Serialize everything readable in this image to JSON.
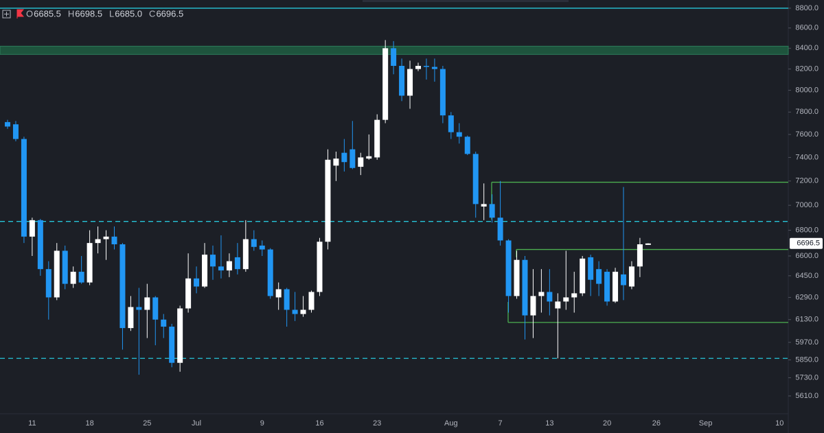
{
  "chart_data": {
    "type": "candlestick",
    "ohlc_letters": [
      "O",
      "H",
      "L",
      "C"
    ],
    "last_labels": {
      "open": "6685.5",
      "high": "6698.5",
      "low": "6685.0",
      "close": "6696.5"
    },
    "categories": [
      null,
      null,
      null,
      "11",
      null,
      null,
      null,
      null,
      null,
      null,
      "18",
      null,
      null,
      null,
      null,
      null,
      null,
      "25",
      null,
      null,
      null,
      null,
      null,
      "Jul",
      null,
      null,
      null,
      null,
      null,
      null,
      null,
      "9",
      null,
      null,
      null,
      null,
      null,
      null,
      "16",
      null,
      null,
      null,
      null,
      null,
      null,
      "23",
      null,
      null,
      null,
      null,
      null,
      null,
      null,
      null,
      "Aug",
      null,
      null,
      null,
      null,
      null,
      "7",
      null,
      null,
      null,
      null,
      null,
      "13",
      null,
      null,
      null,
      null,
      null,
      null,
      "20",
      null,
      null,
      null,
      null,
      null,
      "26",
      null,
      null,
      null,
      null,
      null,
      "Sep",
      null,
      null,
      null,
      null,
      null,
      null,
      null,
      null,
      "10"
    ],
    "open": [
      7710,
      7690,
      7560,
      6750,
      6880,
      6500,
      6290,
      6640,
      6390,
      6480,
      6400,
      6700,
      6730,
      6750,
      6690,
      6070,
      6220,
      6200,
      6290,
      6130,
      6080,
      5830,
      6210,
      6430,
      6370,
      6610,
      6520,
      6490,
      6590,
      6500,
      6730,
      6680,
      6650,
      6290,
      6350,
      6200,
      6170,
      6200,
      6330,
      6710,
      7330,
      7440,
      7470,
      7320,
      7390,
      7400,
      7730,
      8400,
      8230,
      7950,
      8200,
      8230,
      8220,
      8200,
      7770,
      7620,
      7580,
      7430,
      6990,
      7010,
      6900,
      6720,
      6300,
      6570,
      6160,
      6300,
      6330,
      6210,
      6260,
      6290,
      6320,
      6590,
      6500,
      6480,
      6260,
      6460,
      6370,
      6520,
      6685.5,
      null,
      null,
      null,
      null,
      null,
      null,
      null,
      null,
      null,
      null,
      null,
      null,
      null,
      null,
      null,
      null
    ],
    "high": [
      7730,
      7720,
      7580,
      6900,
      6890,
      6560,
      6700,
      6680,
      6520,
      6600,
      6800,
      6830,
      6800,
      6830,
      6700,
      6300,
      6360,
      6390,
      6300,
      6170,
      6100,
      6230,
      6620,
      6520,
      6700,
      6680,
      6760,
      6620,
      6700,
      6880,
      6800,
      6720,
      6660,
      6400,
      6360,
      6330,
      6300,
      6340,
      6740,
      7470,
      7450,
      7560,
      7720,
      7440,
      7600,
      7780,
      8480,
      8470,
      8300,
      8280,
      8260,
      8300,
      8300,
      8230,
      7800,
      7700,
      7590,
      7450,
      7180,
      7090,
      7200,
      6730,
      6640,
      6600,
      6500,
      6500,
      6500,
      6320,
      6640,
      6480,
      6600,
      6610,
      6560,
      6500,
      6510,
      7150,
      6560,
      6740,
      6698.5,
      null,
      null,
      null,
      null,
      null,
      null,
      null,
      null,
      null,
      null,
      null,
      null,
      null,
      null,
      null,
      null
    ],
    "low": [
      7650,
      7540,
      6700,
      6600,
      6450,
      6130,
      6270,
      6350,
      6360,
      6390,
      6380,
      6620,
      6570,
      6650,
      5920,
      6050,
      5750,
      6000,
      5950,
      6000,
      5800,
      5770,
      6180,
      6320,
      6360,
      6420,
      6430,
      6440,
      6460,
      6480,
      6640,
      6600,
      6280,
      6200,
      6080,
      6120,
      6150,
      6180,
      6300,
      6650,
      7200,
      7280,
      7300,
      7250,
      7380,
      7380,
      7700,
      8150,
      7900,
      7830,
      8180,
      8100,
      8080,
      7700,
      7560,
      7520,
      7420,
      6900,
      6880,
      6860,
      6680,
      6180,
      6280,
      5990,
      6000,
      6180,
      6160,
      5860,
      6200,
      6180,
      6300,
      6300,
      6300,
      6230,
      6250,
      6270,
      6350,
      6440,
      6685,
      null,
      null,
      null,
      null,
      null,
      null,
      null,
      null,
      null,
      null,
      null,
      null,
      null,
      null,
      null,
      null
    ],
    "close": [
      7670,
      7560,
      6750,
      6880,
      6500,
      6290,
      6640,
      6390,
      6480,
      6400,
      6700,
      6730,
      6750,
      6690,
      6070,
      6220,
      6200,
      6290,
      6130,
      6080,
      5830,
      6210,
      6430,
      6370,
      6610,
      6520,
      6490,
      6560,
      6500,
      6730,
      6670,
      6650,
      6300,
      6350,
      6200,
      6170,
      6200,
      6330,
      6710,
      7380,
      7390,
      7360,
      7310,
      7400,
      7410,
      7730,
      8400,
      8230,
      7950,
      8200,
      8230,
      8220,
      8200,
      7770,
      7620,
      7580,
      7430,
      7010,
      7010,
      6900,
      6720,
      6300,
      6570,
      6160,
      6300,
      6330,
      6260,
      6260,
      6290,
      6320,
      6580,
      6420,
      6390,
      6260,
      6480,
      6380,
      6520,
      6690,
      6696.5,
      null,
      null,
      null,
      null,
      null,
      null,
      null,
      null,
      null,
      null,
      null,
      null,
      null,
      null,
      null,
      null
    ],
    "up_color": "#ffffff",
    "down_color": "#2196f3",
    "log_scale": true,
    "ylim": [
      5495,
      8884
    ],
    "yticks": [
      {
        "value": 8800,
        "label": "8800.0"
      },
      {
        "value": 8600,
        "label": "8600.0"
      },
      {
        "value": 8400,
        "label": "8400.0"
      },
      {
        "value": 8200,
        "label": "8200.0"
      },
      {
        "value": 8000,
        "label": "8000.0"
      },
      {
        "value": 7800,
        "label": "7800.0"
      },
      {
        "value": 7600,
        "label": "7600.0"
      },
      {
        "value": 7400,
        "label": "7400.0"
      },
      {
        "value": 7200,
        "label": "7200.0"
      },
      {
        "value": 7000,
        "label": "7000.0"
      },
      {
        "value": 6800,
        "label": "6800.0"
      },
      {
        "value": 6600,
        "label": "6600.0"
      },
      {
        "value": 6450,
        "label": "6450.0"
      },
      {
        "value": 6290,
        "label": "6290.0"
      },
      {
        "value": 6130,
        "label": "6130.0"
      },
      {
        "value": 5970,
        "label": "5970.0"
      },
      {
        "value": 5850,
        "label": "5850.0"
      },
      {
        "value": 5730,
        "label": "5730.0"
      },
      {
        "value": 5610,
        "label": "5610.0"
      }
    ],
    "grid": false,
    "zone": {
      "range": [
        8340,
        8420
      ],
      "color": "#1f5a40"
    },
    "levels": [
      {
        "value": 8800,
        "color": "#26c6da",
        "dashed": false
      },
      {
        "value": 6870,
        "color": "#26c6da",
        "dashed": true
      },
      {
        "value": 5860,
        "color": "#26c6da",
        "dashed": true
      },
      {
        "value": 7190,
        "color": "#4caf50",
        "dashed": false
      },
      {
        "value": 6650,
        "color": "#4caf50",
        "dashed": false
      },
      {
        "value": 6110,
        "color": "#4caf50",
        "dashed": false
      }
    ]
  }
}
